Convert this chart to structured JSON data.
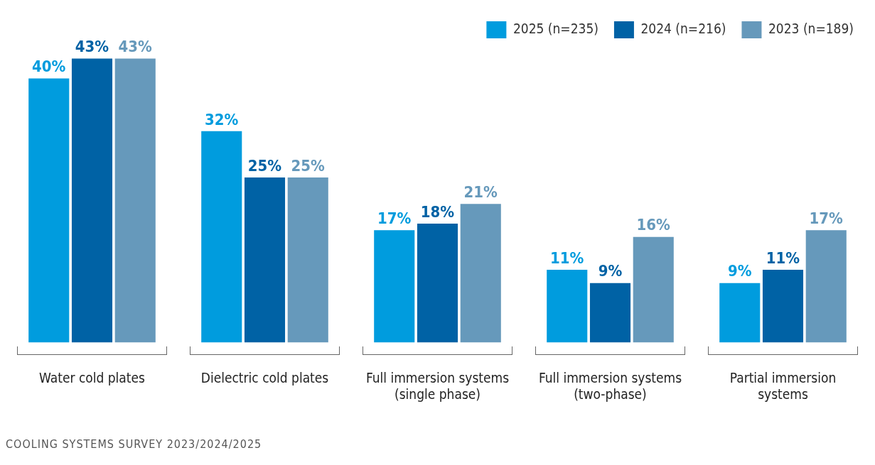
{
  "chart_data": {
    "type": "bar",
    "categories": [
      "Water cold plates",
      "Dielectric cold plates",
      "Full immersion systems (single phase)",
      "Full immersion systems (two-phase)",
      "Partial immersion systems"
    ],
    "series": [
      {
        "name": "2025 (n=235)",
        "color": "#009cde",
        "values": [
          40,
          32,
          17,
          11,
          9
        ],
        "value_labels": [
          "40%",
          "32%",
          "17%",
          "11%",
          "9%"
        ]
      },
      {
        "name": "2024 (n=216)",
        "color": "#0062a5",
        "values": [
          43,
          25,
          18,
          9,
          11
        ],
        "value_labels": [
          "43%",
          "25%",
          "18%",
          "9%",
          "11%"
        ]
      },
      {
        "name": "2023 (n=189)",
        "color": "#6699bb",
        "values": [
          43,
          25,
          21,
          16,
          17
        ],
        "value_labels": [
          "43%",
          "25%",
          "21%",
          "16%",
          "17%"
        ]
      }
    ],
    "legend": "top right",
    "grid": false,
    "annotations": [
      "COOLING SYSTEMS SURVEY 2023/2024/2025"
    ]
  }
}
